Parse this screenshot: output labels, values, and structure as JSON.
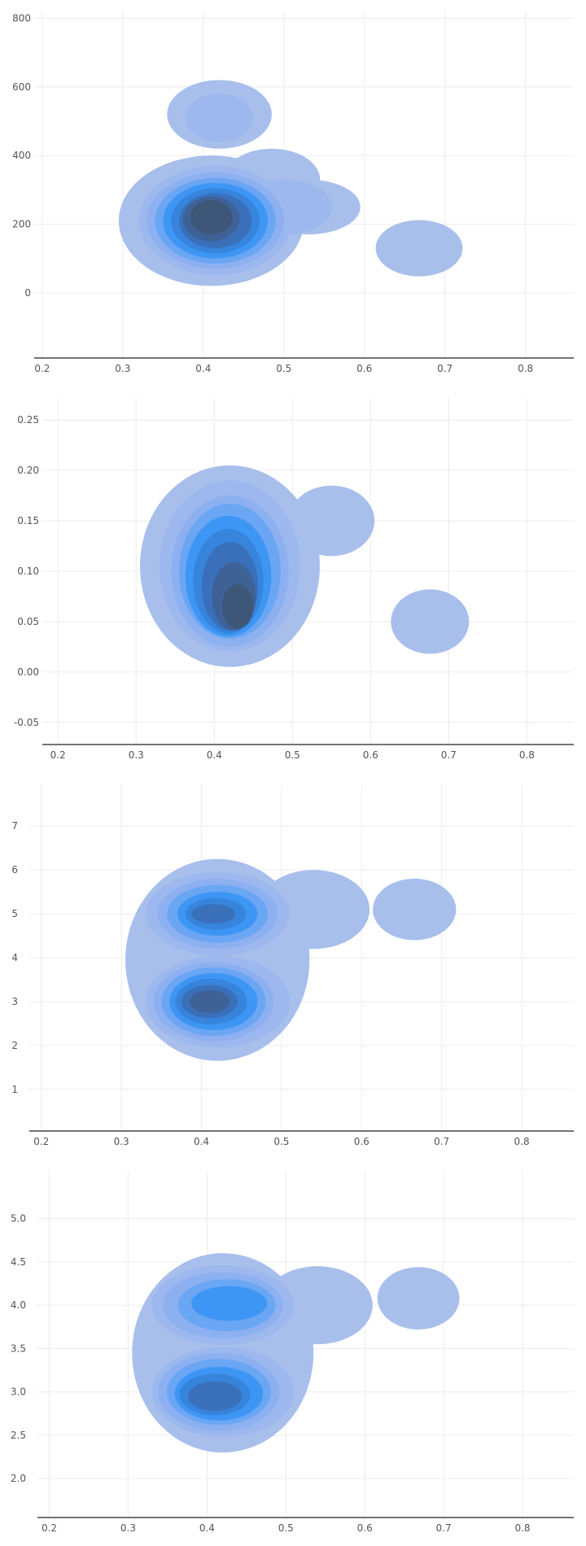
{
  "colors": {
    "background": "#ffffff",
    "grid": "#ececec",
    "axis": "#222222",
    "tick_text": "#555555",
    "density_levels": [
      "#a8bfec",
      "#9cb8ee",
      "#8cb0f0",
      "#6aa6f4",
      "#3e96f4",
      "#3684dc",
      "#3a6fb9",
      "#3e6196",
      "#3e5678",
      "#3b4f68"
    ]
  },
  "chart_data": [
    {
      "type": "density",
      "x_ticks": [
        "0.2",
        "0.3",
        "0.4",
        "0.5",
        "0.6",
        "0.7",
        "0.8"
      ],
      "y_ticks": [
        "800",
        "600",
        "400",
        "200",
        "0"
      ],
      "x_range": [
        0.19,
        0.86
      ],
      "y_range": [
        -190,
        820
      ],
      "grid": true,
      "xlabel": "",
      "ylabel": "",
      "levels": [
        [
          {
            "cx": 0.42,
            "cy": 520,
            "rx": 0.065,
            "ry": 100
          },
          {
            "cx": 0.41,
            "cy": 210,
            "rx": 0.115,
            "ry": 190
          },
          {
            "cx": 0.53,
            "cy": 250,
            "rx": 0.065,
            "ry": 80
          },
          {
            "cx": 0.485,
            "cy": 330,
            "rx": 0.06,
            "ry": 90
          },
          {
            "cx": 0.668,
            "cy": 130,
            "rx": 0.054,
            "ry": 82
          }
        ],
        [
          {
            "cx": 0.42,
            "cy": 510,
            "rx": 0.042,
            "ry": 70
          },
          {
            "cx": 0.415,
            "cy": 210,
            "rx": 0.095,
            "ry": 160
          },
          {
            "cx": 0.5,
            "cy": 250,
            "rx": 0.06,
            "ry": 80
          }
        ],
        [
          {
            "cx": 0.415,
            "cy": 210,
            "rx": 0.085,
            "ry": 140
          }
        ],
        [
          {
            "cx": 0.415,
            "cy": 210,
            "rx": 0.075,
            "ry": 125
          }
        ],
        [
          {
            "cx": 0.415,
            "cy": 210,
            "rx": 0.065,
            "ry": 110
          }
        ],
        [
          {
            "cx": 0.415,
            "cy": 210,
            "rx": 0.055,
            "ry": 95
          }
        ],
        [
          {
            "cx": 0.415,
            "cy": 210,
            "rx": 0.045,
            "ry": 80
          }
        ],
        [
          {
            "cx": 0.41,
            "cy": 215,
            "rx": 0.035,
            "ry": 65
          }
        ],
        [
          {
            "cx": 0.41,
            "cy": 220,
            "rx": 0.026,
            "ry": 50
          }
        ]
      ]
    },
    {
      "type": "density",
      "x_ticks": [
        "0.2",
        "0.3",
        "0.4",
        "0.5",
        "0.6",
        "0.7",
        "0.8"
      ],
      "y_ticks": [
        "0.25",
        "0.20",
        "0.15",
        "0.10",
        "0.05",
        "0.00",
        "-0.05"
      ],
      "x_range": [
        0.18,
        0.86
      ],
      "y_range": [
        -0.072,
        0.272
      ],
      "grid": true,
      "xlabel": "",
      "ylabel": "",
      "levels": [
        [
          {
            "cx": 0.42,
            "cy": 0.105,
            "rx": 0.115,
            "ry": 0.1
          },
          {
            "cx": 0.55,
            "cy": 0.15,
            "rx": 0.055,
            "ry": 0.035
          },
          {
            "cx": 0.676,
            "cy": 0.05,
            "rx": 0.05,
            "ry": 0.032
          }
        ],
        [
          {
            "cx": 0.42,
            "cy": 0.105,
            "rx": 0.09,
            "ry": 0.085
          }
        ],
        [
          {
            "cx": 0.42,
            "cy": 0.1,
            "rx": 0.075,
            "ry": 0.075
          }
        ],
        [
          {
            "cx": 0.42,
            "cy": 0.1,
            "rx": 0.065,
            "ry": 0.067
          }
        ],
        [
          {
            "cx": 0.418,
            "cy": 0.095,
            "rx": 0.055,
            "ry": 0.06
          }
        ],
        [
          {
            "cx": 0.418,
            "cy": 0.09,
            "rx": 0.045,
            "ry": 0.052
          }
        ],
        [
          {
            "cx": 0.42,
            "cy": 0.085,
            "rx": 0.036,
            "ry": 0.044
          }
        ],
        [
          {
            "cx": 0.425,
            "cy": 0.075,
            "rx": 0.028,
            "ry": 0.034
          }
        ],
        [
          {
            "cx": 0.43,
            "cy": 0.065,
            "rx": 0.02,
            "ry": 0.022
          }
        ]
      ]
    },
    {
      "type": "density",
      "x_ticks": [
        "0.2",
        "0.3",
        "0.4",
        "0.5",
        "0.6",
        "0.7",
        "0.8"
      ],
      "y_ticks": [
        "7",
        "6",
        "5",
        "4",
        "3",
        "2",
        "1"
      ],
      "x_range": [
        0.185,
        0.865
      ],
      "y_range": [
        0.05,
        7.95
      ],
      "grid": true,
      "xlabel": "",
      "ylabel": "",
      "levels": [
        [
          {
            "cx": 0.42,
            "cy": 3.95,
            "rx": 0.115,
            "ry": 2.3
          },
          {
            "cx": 0.54,
            "cy": 5.1,
            "rx": 0.07,
            "ry": 0.9
          },
          {
            "cx": 0.666,
            "cy": 5.1,
            "rx": 0.052,
            "ry": 0.7
          }
        ],
        [
          {
            "cx": 0.42,
            "cy": 5.0,
            "rx": 0.09,
            "ry": 0.95
          },
          {
            "cx": 0.42,
            "cy": 3.0,
            "rx": 0.09,
            "ry": 1.05
          }
        ],
        [
          {
            "cx": 0.42,
            "cy": 5.0,
            "rx": 0.075,
            "ry": 0.8
          },
          {
            "cx": 0.415,
            "cy": 3.0,
            "rx": 0.075,
            "ry": 0.9
          }
        ],
        [
          {
            "cx": 0.42,
            "cy": 5.0,
            "rx": 0.063,
            "ry": 0.66
          },
          {
            "cx": 0.415,
            "cy": 3.0,
            "rx": 0.065,
            "ry": 0.78
          }
        ],
        [
          {
            "cx": 0.42,
            "cy": 5.0,
            "rx": 0.05,
            "ry": 0.5
          },
          {
            "cx": 0.415,
            "cy": 3.0,
            "rx": 0.055,
            "ry": 0.65
          }
        ],
        [
          {
            "cx": 0.418,
            "cy": 5.0,
            "rx": 0.038,
            "ry": 0.36
          },
          {
            "cx": 0.412,
            "cy": 3.0,
            "rx": 0.045,
            "ry": 0.52
          }
        ],
        [
          {
            "cx": 0.415,
            "cy": 5.0,
            "rx": 0.027,
            "ry": 0.22
          },
          {
            "cx": 0.41,
            "cy": 3.0,
            "rx": 0.035,
            "ry": 0.38
          }
        ],
        [
          {
            "cx": 0.41,
            "cy": 3.0,
            "rx": 0.025,
            "ry": 0.26
          }
        ]
      ]
    },
    {
      "type": "density",
      "x_ticks": [
        "0.2",
        "0.3",
        "0.4",
        "0.5",
        "0.6",
        "0.7",
        "0.8"
      ],
      "y_ticks": [
        "5.0",
        "4.5",
        "4.0",
        "3.5",
        "3.0",
        "2.5",
        "2.0"
      ],
      "x_range": [
        0.185,
        0.865
      ],
      "y_range": [
        1.55,
        5.55
      ],
      "grid": true,
      "xlabel": "",
      "ylabel": "",
      "levels": [
        [
          {
            "cx": 0.42,
            "cy": 3.45,
            "rx": 0.115,
            "ry": 1.15
          },
          {
            "cx": 0.54,
            "cy": 4.0,
            "rx": 0.07,
            "ry": 0.45
          },
          {
            "cx": 0.668,
            "cy": 4.08,
            "rx": 0.052,
            "ry": 0.36
          }
        ],
        [
          {
            "cx": 0.42,
            "cy": 4.0,
            "rx": 0.09,
            "ry": 0.46
          },
          {
            "cx": 0.42,
            "cy": 3.0,
            "rx": 0.09,
            "ry": 0.52
          }
        ],
        [
          {
            "cx": 0.42,
            "cy": 4.0,
            "rx": 0.076,
            "ry": 0.38
          },
          {
            "cx": 0.415,
            "cy": 3.0,
            "rx": 0.077,
            "ry": 0.45
          }
        ],
        [
          {
            "cx": 0.425,
            "cy": 4.0,
            "rx": 0.062,
            "ry": 0.3
          },
          {
            "cx": 0.415,
            "cy": 3.0,
            "rx": 0.066,
            "ry": 0.38
          }
        ],
        [
          {
            "cx": 0.428,
            "cy": 4.02,
            "rx": 0.048,
            "ry": 0.2
          },
          {
            "cx": 0.415,
            "cy": 2.98,
            "rx": 0.056,
            "ry": 0.31
          }
        ],
        [
          {
            "cx": 0.41,
            "cy": 2.97,
            "rx": 0.045,
            "ry": 0.24
          }
        ],
        [
          {
            "cx": 0.41,
            "cy": 2.95,
            "rx": 0.034,
            "ry": 0.17
          }
        ]
      ]
    }
  ]
}
